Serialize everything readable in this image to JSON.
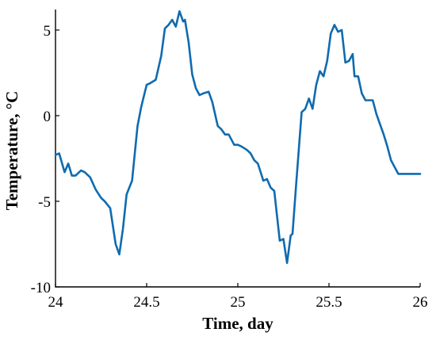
{
  "chart_data": {
    "type": "line",
    "xlabel": "Time, day",
    "ylabel": "Temperature, °C",
    "xlim": [
      24,
      26
    ],
    "ylim": [
      -10,
      6.2
    ],
    "xticks": [
      24,
      24.5,
      25,
      25.5,
      26
    ],
    "xtick_labels": [
      "24",
      "24.5",
      "25",
      "25.5",
      "26"
    ],
    "yticks": [
      -10,
      -5,
      0,
      5
    ],
    "ytick_labels": [
      "-10",
      "-5",
      "0",
      "5"
    ],
    "grid": false,
    "line_color": "#0E6BB0",
    "series": [
      {
        "x": [
          24.0,
          24.02,
          24.05,
          24.07,
          24.09,
          24.11,
          24.14,
          24.16,
          24.19,
          24.22,
          24.25,
          24.27,
          24.3,
          24.33,
          24.35,
          24.37,
          24.39,
          24.42,
          24.45,
          24.47,
          24.5,
          24.52,
          24.55,
          24.58,
          24.6,
          24.62,
          24.64,
          24.66,
          24.68,
          24.7,
          24.71,
          24.73,
          24.75,
          24.77,
          24.79,
          24.81,
          24.84,
          24.86,
          24.89,
          24.91,
          24.93,
          24.95,
          24.98,
          25.0,
          25.02,
          25.05,
          25.07,
          25.09,
          25.11,
          25.14,
          25.16,
          25.18,
          25.2,
          25.23,
          25.25,
          25.27,
          25.29,
          25.3,
          25.32,
          25.33,
          25.35,
          25.37,
          25.39,
          25.41,
          25.43,
          25.45,
          25.47,
          25.49,
          25.51,
          25.53,
          25.55,
          25.57,
          25.59,
          25.61,
          25.63,
          25.64,
          25.66,
          25.68,
          25.7,
          25.72,
          25.74,
          25.76,
          25.78,
          25.8,
          25.82,
          25.84,
          25.86,
          25.88,
          25.9,
          25.92,
          25.94,
          25.96,
          25.98,
          26.0
        ],
        "y": [
          -2.3,
          -2.2,
          -3.3,
          -2.8,
          -3.5,
          -3.5,
          -3.2,
          -3.3,
          -3.6,
          -4.3,
          -4.8,
          -5.0,
          -5.4,
          -7.5,
          -8.1,
          -6.6,
          -4.6,
          -3.8,
          -0.6,
          0.5,
          1.8,
          1.9,
          2.1,
          3.5,
          5.1,
          5.3,
          5.6,
          5.2,
          6.1,
          5.5,
          5.6,
          4.3,
          2.4,
          1.6,
          1.2,
          1.3,
          1.4,
          0.8,
          -0.6,
          -0.8,
          -1.1,
          -1.1,
          -1.7,
          -1.7,
          -1.8,
          -2.0,
          -2.2,
          -2.6,
          -2.8,
          -3.8,
          -3.7,
          -4.2,
          -4.4,
          -7.3,
          -7.2,
          -8.6,
          -7.0,
          -6.9,
          -4.0,
          -2.6,
          0.2,
          0.4,
          1.0,
          0.4,
          1.8,
          2.6,
          2.3,
          3.2,
          4.8,
          5.3,
          4.9,
          5.0,
          3.1,
          3.2,
          3.6,
          2.3,
          2.3,
          1.3,
          0.9,
          0.9,
          0.9,
          0.1,
          -0.5,
          -1.1,
          -1.8,
          -2.6,
          -3.0,
          -3.4,
          -3.4,
          -3.4,
          -3.4,
          -3.4,
          -3.4,
          -3.4
        ]
      }
    ]
  }
}
